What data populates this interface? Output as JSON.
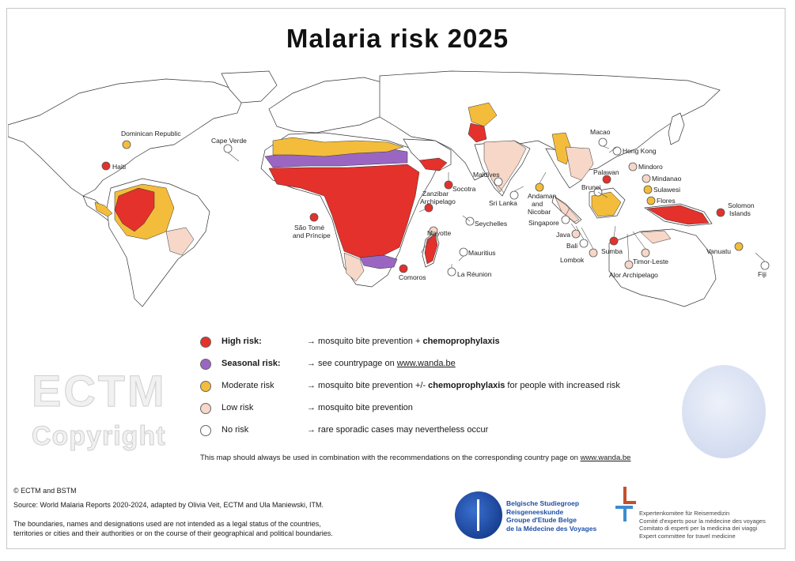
{
  "title": "Malaria risk 2025",
  "colors": {
    "high": "#e4312b",
    "seasonal": "#9b66c2",
    "moderate": "#f3bd3b",
    "low": "#f6d7c8",
    "none": "#ffffff",
    "land": "#ffffff",
    "border": "#333333"
  },
  "legend": [
    {
      "name": "High risk:",
      "color": "#e4312b",
      "bold": true,
      "pre": "→ mosquito bite prevention + ",
      "strong": "chemoprophylaxis",
      "link": "",
      "post": ""
    },
    {
      "name": "Seasonal risk:",
      "color": "#9b66c2",
      "bold": true,
      "pre": "→  see countrypage on ",
      "strong": "",
      "link": "www.wanda.be",
      "post": ""
    },
    {
      "name": "Moderate risk",
      "color": "#f3bd3b",
      "bold": false,
      "pre": "→ mosquito bite prevention +/- ",
      "strong": "chemoprophylaxis",
      "link": "",
      "post": " for people with increased risk"
    },
    {
      "name": "Low risk",
      "color": "#f6d7c8",
      "bold": false,
      "pre": "→ mosquito bite prevention",
      "strong": "",
      "link": "",
      "post": ""
    },
    {
      "name": "No risk",
      "color": "#ffffff",
      "bold": false,
      "pre": "→ rare sporadic cases may nevertheless occur",
      "strong": "",
      "link": "",
      "post": ""
    }
  ],
  "note": {
    "text": "This map should always be used in combination with the recommendations on the corresponding country page on ",
    "link": "www.wanda.be"
  },
  "watermark": {
    "line1": "ECTM",
    "line2": "Copyright"
  },
  "credits": {
    "copyright": "© ECTM and BSTM",
    "source": "Source: World Malaria Reports 2020-2024, adapted by Olivia Veit, ECTM and Ula Maniewski, ITM.",
    "disclaimer1": "The boundaries, names and designations used are not intended as a legal status of the countries,",
    "disclaimer2": "territories or cities and their authorities or on the course of their geographical and political boundaries."
  },
  "bsg": {
    "line1": "Belgische Studiegroep",
    "line2": "Reisgeneeskunde",
    "line3": "Groupe d'Etude Belge",
    "line4": "de la Médecine des Voyages"
  },
  "ecm": {
    "line1": "Expertenkomitee für Reisemedizin",
    "line2": "Comité d'experts pour la médecine des voyages",
    "line3": "Comitato di esperti per la medicina dei viaggi",
    "line4": "Expert committee for travel medicine"
  },
  "places": {
    "dominican_republic": {
      "label": "Dominican Republic",
      "risk": "moderate"
    },
    "haiti": {
      "label": "Haiti",
      "risk": "high"
    },
    "cape_verde": {
      "label": "Cape Verde",
      "risk": "none"
    },
    "sao_tome": {
      "label": "São Tomé and Príncipe",
      "risk": "high"
    },
    "socotra": {
      "label": "Socotra",
      "risk": "high"
    },
    "zanzibar": {
      "label": "Zanzibar Archipelago",
      "risk": "high"
    },
    "seychelles": {
      "label": "Seychelles",
      "risk": "none"
    },
    "mayotte": {
      "label": "Mayotte",
      "risk": "low"
    },
    "comoros": {
      "label": "Comoros",
      "risk": "high"
    },
    "mauritius": {
      "label": "Mauritius",
      "risk": "none"
    },
    "la_reunion": {
      "label": "La Réunion",
      "risk": "none"
    },
    "maldives": {
      "label": "Maldives",
      "risk": "none"
    },
    "sri_lanka": {
      "label": "Sri Lanka",
      "risk": "none"
    },
    "andaman": {
      "label": "Andaman and Nicobar",
      "risk": "moderate"
    },
    "singapore": {
      "label": "Singapore",
      "risk": "none"
    },
    "macao": {
      "label": "Macao",
      "risk": "none"
    },
    "hong_kong": {
      "label": "Hong Kong",
      "risk": "none"
    },
    "palawan": {
      "label": "Palawan",
      "risk": "high"
    },
    "mindoro": {
      "label": "Mindoro",
      "risk": "low"
    },
    "mindanao": {
      "label": "Mindanao",
      "risk": "low"
    },
    "brunei": {
      "label": "Brunei",
      "risk": "none"
    },
    "sulawesi": {
      "label": "Sulawesi",
      "risk": "moderate"
    },
    "flores": {
      "label": "Flores",
      "risk": "moderate"
    },
    "java": {
      "label": "Java",
      "risk": "low"
    },
    "bali": {
      "label": "Bali",
      "risk": "none"
    },
    "lombok": {
      "label": "Lombok",
      "risk": "low"
    },
    "sumba": {
      "label": "Sumba",
      "risk": "high"
    },
    "timor_leste": {
      "label": "Timor-Leste",
      "risk": "low"
    },
    "alor": {
      "label": "Alor Archipelago",
      "risk": "low"
    },
    "solomon": {
      "label": "Solomon Islands",
      "risk": "high"
    },
    "vanuatu": {
      "label": "Vanuatu",
      "risk": "moderate"
    },
    "fiji": {
      "label": "Fiji",
      "risk": "none"
    }
  }
}
